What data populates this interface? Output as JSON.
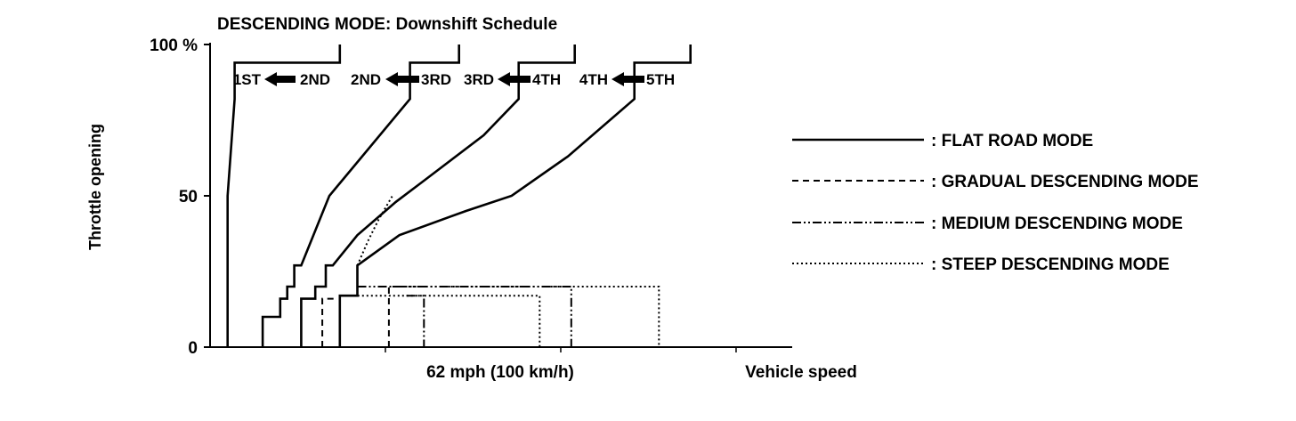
{
  "chart_data": {
    "type": "line",
    "title": "DESCENDING MODE: Downshift Schedule",
    "xlabel": "Vehicle speed",
    "ylabel": "Throttle opening",
    "x_reference_label": "62 mph (100 km/h)",
    "x_reference_value": 100,
    "xlim": [
      0,
      166
    ],
    "ylim": [
      0,
      100
    ],
    "ytick_labels": [
      {
        "value": 100,
        "label": "100 %"
      },
      {
        "value": 50,
        "label": "50"
      },
      {
        "value": 0,
        "label": "0"
      }
    ],
    "x_minor_ticks": [
      50,
      100,
      150
    ],
    "gear_labels": [
      {
        "from": "2ND",
        "to": "1ST"
      },
      {
        "from": "3RD",
        "to": "2ND"
      },
      {
        "from": "4TH",
        "to": "3RD"
      },
      {
        "from": "5TH",
        "to": "4TH"
      }
    ],
    "legend_position": "right",
    "series": [
      {
        "name": "FLAT ROAD MODE",
        "style": "solid",
        "lines": [
          [
            [
              15,
              0
            ],
            [
              15,
              10
            ],
            [
              20,
              10
            ],
            [
              20,
              16
            ],
            [
              22,
              16
            ],
            [
              22,
              20
            ],
            [
              24,
              20
            ],
            [
              24,
              27
            ],
            [
              26,
              27
            ],
            [
              34,
              50
            ],
            [
              57,
              82
            ],
            [
              57,
              94
            ],
            [
              71,
              94
            ],
            [
              71,
              100
            ]
          ],
          [
            [
              26,
              0
            ],
            [
              26,
              16
            ],
            [
              30,
              16
            ],
            [
              30,
              20
            ],
            [
              33,
              20
            ],
            [
              33,
              27
            ],
            [
              35,
              27
            ],
            [
              42,
              37
            ],
            [
              50,
              45
            ],
            [
              53,
              48
            ],
            [
              61,
              55
            ],
            [
              78,
              70
            ],
            [
              88,
              82
            ],
            [
              88,
              94
            ],
            [
              104,
              94
            ],
            [
              104,
              100
            ]
          ],
          [
            [
              37,
              0
            ],
            [
              37,
              17
            ],
            [
              42,
              17
            ],
            [
              42,
              27
            ],
            [
              54,
              37
            ],
            [
              73,
              45
            ],
            [
              86,
              50
            ],
            [
              102,
              63
            ],
            [
              121,
              82
            ],
            [
              121,
              94
            ],
            [
              137,
              94
            ],
            [
              137,
              100
            ]
          ],
          [
            [
              5,
              0
            ],
            [
              5,
              50
            ],
            [
              7,
              82
            ],
            [
              7,
              94
            ],
            [
              37,
              94
            ],
            [
              37,
              100
            ]
          ]
        ]
      },
      {
        "name": "GRADUAL DESCENDING MODE",
        "style": "dashed",
        "lines": [
          [
            [
              32,
              0
            ],
            [
              32,
              16
            ],
            [
              36,
              16
            ]
          ],
          [
            [
              51,
              0
            ],
            [
              51,
              20
            ],
            [
              54,
              20
            ]
          ]
        ]
      },
      {
        "name": "MEDIUM DESCENDING MODE",
        "style": "dashdotdot",
        "lines": [
          [
            [
              42,
              20
            ],
            [
              103,
              20
            ],
            [
              103,
              0
            ]
          ],
          [
            [
              56,
              17
            ],
            [
              61,
              17
            ],
            [
              61,
              0
            ]
          ]
        ]
      },
      {
        "name": "STEEP DESCENDING MODE",
        "style": "dotted",
        "lines": [
          [
            [
              54,
              20
            ],
            [
              128,
              20
            ],
            [
              128,
              0
            ]
          ],
          [
            [
              37,
              17
            ],
            [
              94,
              17
            ],
            [
              94,
              0
            ]
          ],
          [
            [
              42,
              27
            ],
            [
              45,
              35
            ],
            [
              48,
              42
            ],
            [
              52,
              50
            ]
          ]
        ]
      }
    ]
  }
}
